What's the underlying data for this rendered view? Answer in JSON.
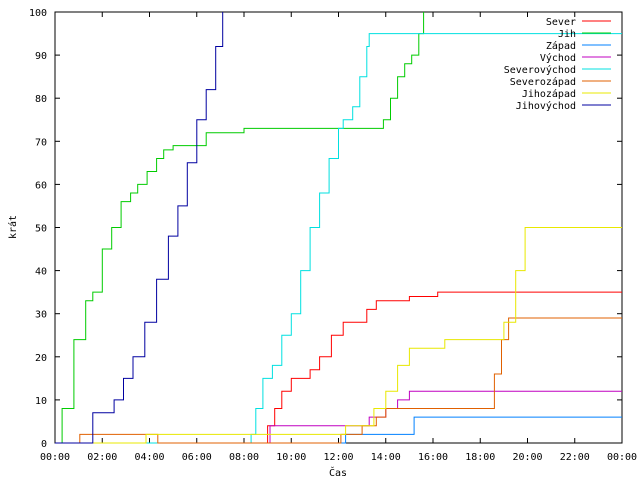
{
  "chart_data": {
    "type": "line",
    "xlabel": "Čas",
    "ylabel": "krát",
    "xlim": [
      0,
      24
    ],
    "ylim": [
      0,
      100
    ],
    "grid": false,
    "legend_position": "top-right",
    "x_ticks": [
      0,
      2,
      4,
      6,
      8,
      10,
      12,
      14,
      16,
      18,
      20,
      22,
      24
    ],
    "x_tick_labels": [
      "00:00",
      "02:00",
      "04:00",
      "06:00",
      "08:00",
      "10:00",
      "12:00",
      "14:00",
      "16:00",
      "18:00",
      "20:00",
      "22:00",
      "00:00"
    ],
    "y_ticks": [
      0,
      10,
      20,
      30,
      40,
      50,
      60,
      70,
      80,
      90,
      100
    ],
    "y_tick_labels": [
      "0",
      "10",
      "20",
      "30",
      "40",
      "50",
      "60",
      "70",
      "80",
      "90",
      "100"
    ],
    "series": [
      {
        "name": "Sever",
        "color": "#ff0000",
        "x": [
          0,
          8.9,
          9.0,
          9.3,
          9.6,
          10.0,
          10.4,
          10.8,
          11.2,
          11.7,
          12.2,
          12.6,
          13.2,
          13.6,
          14.2,
          15.0,
          16.2,
          24
        ],
        "y": [
          0,
          0,
          4,
          8,
          12,
          15,
          15,
          17,
          20,
          25,
          28,
          28,
          31,
          33,
          33,
          34,
          35,
          35
        ]
      },
      {
        "name": "Jih",
        "color": "#00cc00",
        "x": [
          0,
          0.3,
          0.8,
          1.3,
          1.6,
          2.0,
          2.4,
          2.8,
          3.2,
          3.5,
          3.9,
          4.3,
          4.6,
          5.0,
          6.2,
          6.4,
          7.2,
          8.0,
          13.5,
          13.9,
          14.2,
          14.5,
          14.8,
          15.1,
          15.4,
          15.6
        ],
        "y": [
          0,
          8,
          24,
          33,
          35,
          45,
          50,
          56,
          58,
          60,
          63,
          66,
          68,
          69,
          69,
          72,
          72,
          73,
          73,
          75,
          80,
          85,
          88,
          90,
          95,
          100
        ]
      },
      {
        "name": "Západ",
        "color": "#0080ff",
        "x": [
          0,
          12.2,
          12.3,
          15.0,
          15.2,
          24
        ],
        "y": [
          0,
          0,
          2,
          2,
          6,
          6
        ]
      },
      {
        "name": "Východ",
        "color": "#c000c0",
        "x": [
          0,
          9.0,
          9.1,
          13.0,
          13.3,
          14.0,
          14.5,
          15.0,
          24
        ],
        "y": [
          0,
          0,
          4,
          4,
          6,
          8,
          10,
          12,
          12
        ]
      },
      {
        "name": "Severovýchod",
        "color": "#00e0e0",
        "x": [
          0,
          8.1,
          8.3,
          8.5,
          8.8,
          9.2,
          9.6,
          10.0,
          10.4,
          10.8,
          11.2,
          11.6,
          12.0,
          12.2,
          12.6,
          12.9,
          13.2,
          13.3,
          24
        ],
        "y": [
          0,
          0,
          2,
          8,
          15,
          18,
          25,
          30,
          40,
          50,
          58,
          66,
          73,
          75,
          78,
          85,
          92,
          95,
          95
        ]
      },
      {
        "name": "Severozápad",
        "color": "#e06000",
        "x": [
          0,
          1.0,
          1.05,
          4.3,
          4.35,
          12.0,
          12.1,
          13.0,
          13.6,
          14.0,
          18.2,
          18.6,
          18.9,
          19.2,
          24
        ],
        "y": [
          0,
          0,
          2,
          2,
          0,
          0,
          2,
          4,
          6,
          8,
          8,
          16,
          24,
          29,
          29
        ]
      },
      {
        "name": "Jihozápad",
        "color": "#e8e800",
        "x": [
          0,
          3.8,
          3.85,
          11.8,
          12.3,
          13.0,
          13.5,
          14.0,
          14.5,
          15.0,
          15.8,
          16.5,
          18.7,
          19.0,
          19.5,
          19.9,
          24
        ],
        "y": [
          0,
          0,
          2,
          2,
          4,
          4,
          8,
          12,
          18,
          22,
          22,
          24,
          24,
          28,
          40,
          50,
          50
        ]
      },
      {
        "name": "Jihovýchod",
        "color": "#0000a0",
        "x": [
          0,
          1.55,
          1.6,
          2.2,
          2.5,
          2.9,
          3.3,
          3.8,
          4.3,
          4.8,
          5.2,
          5.6,
          6.0,
          6.4,
          6.8,
          7.1
        ],
        "y": [
          0,
          0,
          7,
          7,
          10,
          15,
          20,
          28,
          38,
          48,
          55,
          65,
          75,
          82,
          92,
          100
        ]
      }
    ]
  }
}
